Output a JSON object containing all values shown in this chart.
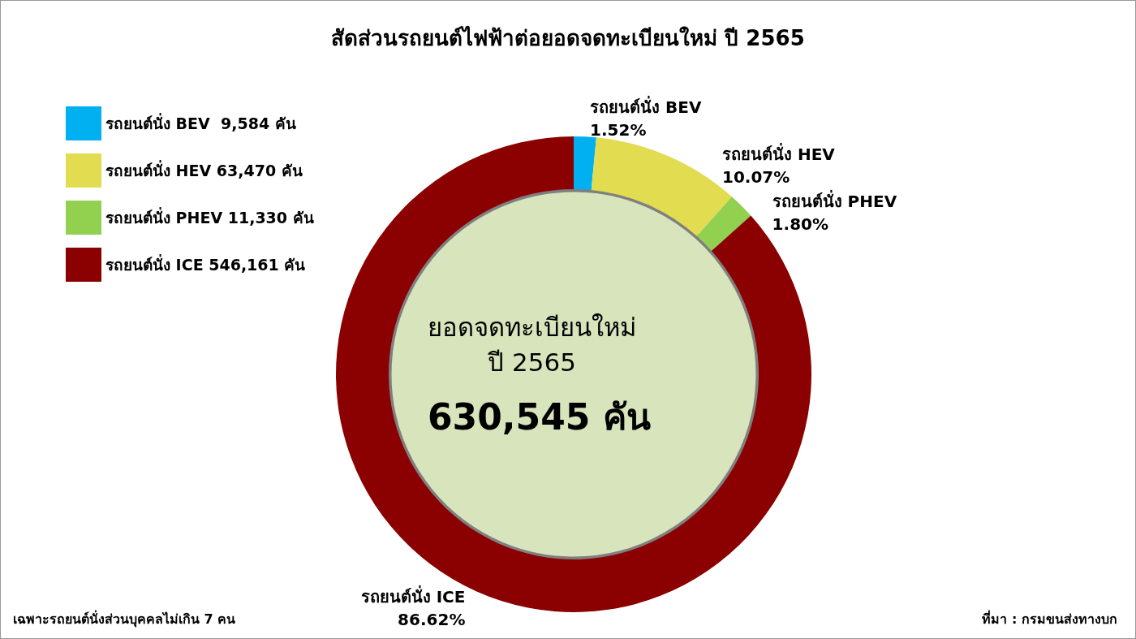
{
  "chart_data": {
    "type": "donut",
    "title": "สัดส่วนรถยนต์ไฟฟ้าต่อยอดจดทะเบียนใหม่ ปี 2565",
    "categories": [
      "รถยนต์นั่ง BEV  9,584 คัน",
      "รถยนต์นั่ง HEV 63,470 คัน",
      "รถยนต์นั่ง PHEV 11,330 คัน",
      "รถยนต์นั่ง ICE 546,161 คัน"
    ],
    "values": [
      9584,
      63470,
      11330,
      546161
    ],
    "colors": [
      "#00b0f0",
      "#e2dc50",
      "#92d050",
      "#8b0000"
    ],
    "value_labels": [
      "รถยนต์นั่ง BEV\n1.52%",
      "รถยนต์นั่ง HEV\n10.07%",
      "รถยนต์นั่ง PHEV\n1.80%",
      "รถยนต์นั่ง ICE\n86.62%"
    ],
    "legend": "top left",
    "annotations": [
      "ยอดจดทะเบียนใหม่\nปี 2565",
      "630,545 คัน",
      "เฉพาะรถยนต์นั่งส่วนบุคคลไม่เกิน 7 คน",
      "ที่มา : กรมขนส่งทางบก"
    ]
  }
}
